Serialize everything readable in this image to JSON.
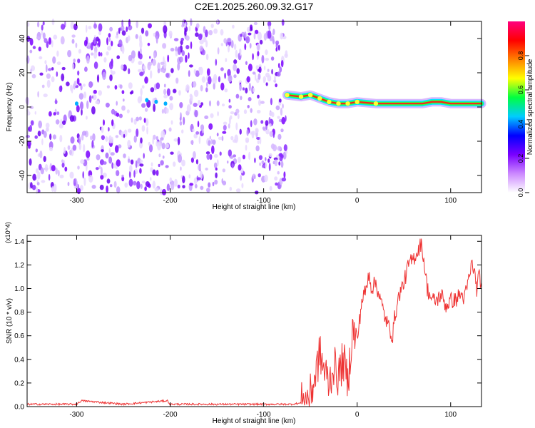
{
  "title": "C2E1.2025.260.09.32.G17",
  "chart_data": [
    {
      "type": "heatmap",
      "title": "C2E1.2025.260.09.32.G17",
      "xlabel": "Height of straight line (km)",
      "ylabel": "Frequency (Hz)",
      "xlim": [
        -353,
        133
      ],
      "ylim": [
        -50,
        50
      ],
      "xticks": [
        -300,
        -200,
        -100,
        0,
        100
      ],
      "yticks": [
        -40,
        -20,
        0,
        20,
        40
      ],
      "grid": false,
      "colorbar": {
        "label": "Normalized spectral amplitude",
        "range": [
          0,
          1
        ],
        "ticks": [
          "0.0",
          "0.2",
          "0.4",
          "0.6",
          "0.8"
        ],
        "colors": [
          "#ffffff",
          "#cc88ff",
          "#7a00ff",
          "#0000ff",
          "#00ccff",
          "#00ff40",
          "#ffff00",
          "#ff8000",
          "#ff0000",
          "#ff007f"
        ]
      },
      "regions": [
        {
          "name": "noise",
          "x_range": [
            -353,
            -75
          ],
          "freq_range": [
            -50,
            50
          ],
          "amplitude": "0.05-0.15"
        },
        {
          "name": "signal-ridge",
          "x_range": [
            -75,
            133
          ],
          "freq": [
            [
              -75,
              7
            ],
            [
              -60,
              6
            ],
            [
              -50,
              7
            ],
            [
              -40,
              5
            ],
            [
              -30,
              3
            ],
            [
              -20,
              2
            ],
            [
              -10,
              2
            ],
            [
              0,
              3
            ],
            [
              20,
              2
            ],
            [
              40,
              2
            ],
            [
              60,
              2
            ],
            [
              70,
              2
            ],
            [
              80,
              3
            ],
            [
              90,
              3
            ],
            [
              100,
              2
            ],
            [
              133,
              2
            ]
          ],
          "amplitude": "0.9-1.0"
        }
      ]
    },
    {
      "type": "line",
      "xlabel": "Height of straight line (km)",
      "ylabel": "SNR (10 * v/v)",
      "y_multiplier": "(x10^4)",
      "xlim": [
        -353,
        133
      ],
      "ylim": [
        0,
        1.45
      ],
      "xticks": [
        -300,
        -200,
        -100,
        0,
        100
      ],
      "yticks": [
        "0.0",
        "0.2",
        "0.4",
        "0.6",
        "0.8",
        "1.0",
        "1.2",
        "1.4"
      ],
      "series": [
        {
          "color": "#ee3333",
          "x": [
            -353,
            -300,
            -295,
            -250,
            -203,
            -200,
            -150,
            -100,
            -70,
            -60,
            -55,
            -50,
            -45,
            -40,
            -35,
            -30,
            -25,
            -20,
            -15,
            -10,
            -5,
            0,
            5,
            10,
            13,
            15,
            20,
            25,
            30,
            35,
            38,
            40,
            45,
            50,
            55,
            60,
            65,
            68,
            70,
            72,
            75,
            80,
            85,
            90,
            95,
            100,
            105,
            110,
            115,
            120,
            123,
            125,
            128,
            130,
            133
          ],
          "y": [
            0.02,
            0.02,
            0.05,
            0.02,
            0.05,
            0.02,
            0.02,
            0.02,
            0.02,
            0.03,
            0.05,
            0.1,
            0.25,
            0.45,
            0.3,
            0.2,
            0.35,
            0.25,
            0.4,
            0.2,
            0.65,
            0.55,
            0.9,
            1.0,
            1.15,
            1.0,
            1.05,
            0.9,
            0.75,
            0.65,
            0.6,
            0.75,
            0.95,
            1.05,
            1.2,
            1.25,
            1.32,
            1.38,
            1.32,
            1.2,
            1.0,
            0.9,
            0.9,
            0.95,
            0.85,
            0.9,
            0.9,
            0.95,
            0.92,
            1.1,
            1.22,
            1.15,
            1.0,
            1.1,
            1.05
          ]
        }
      ]
    }
  ]
}
